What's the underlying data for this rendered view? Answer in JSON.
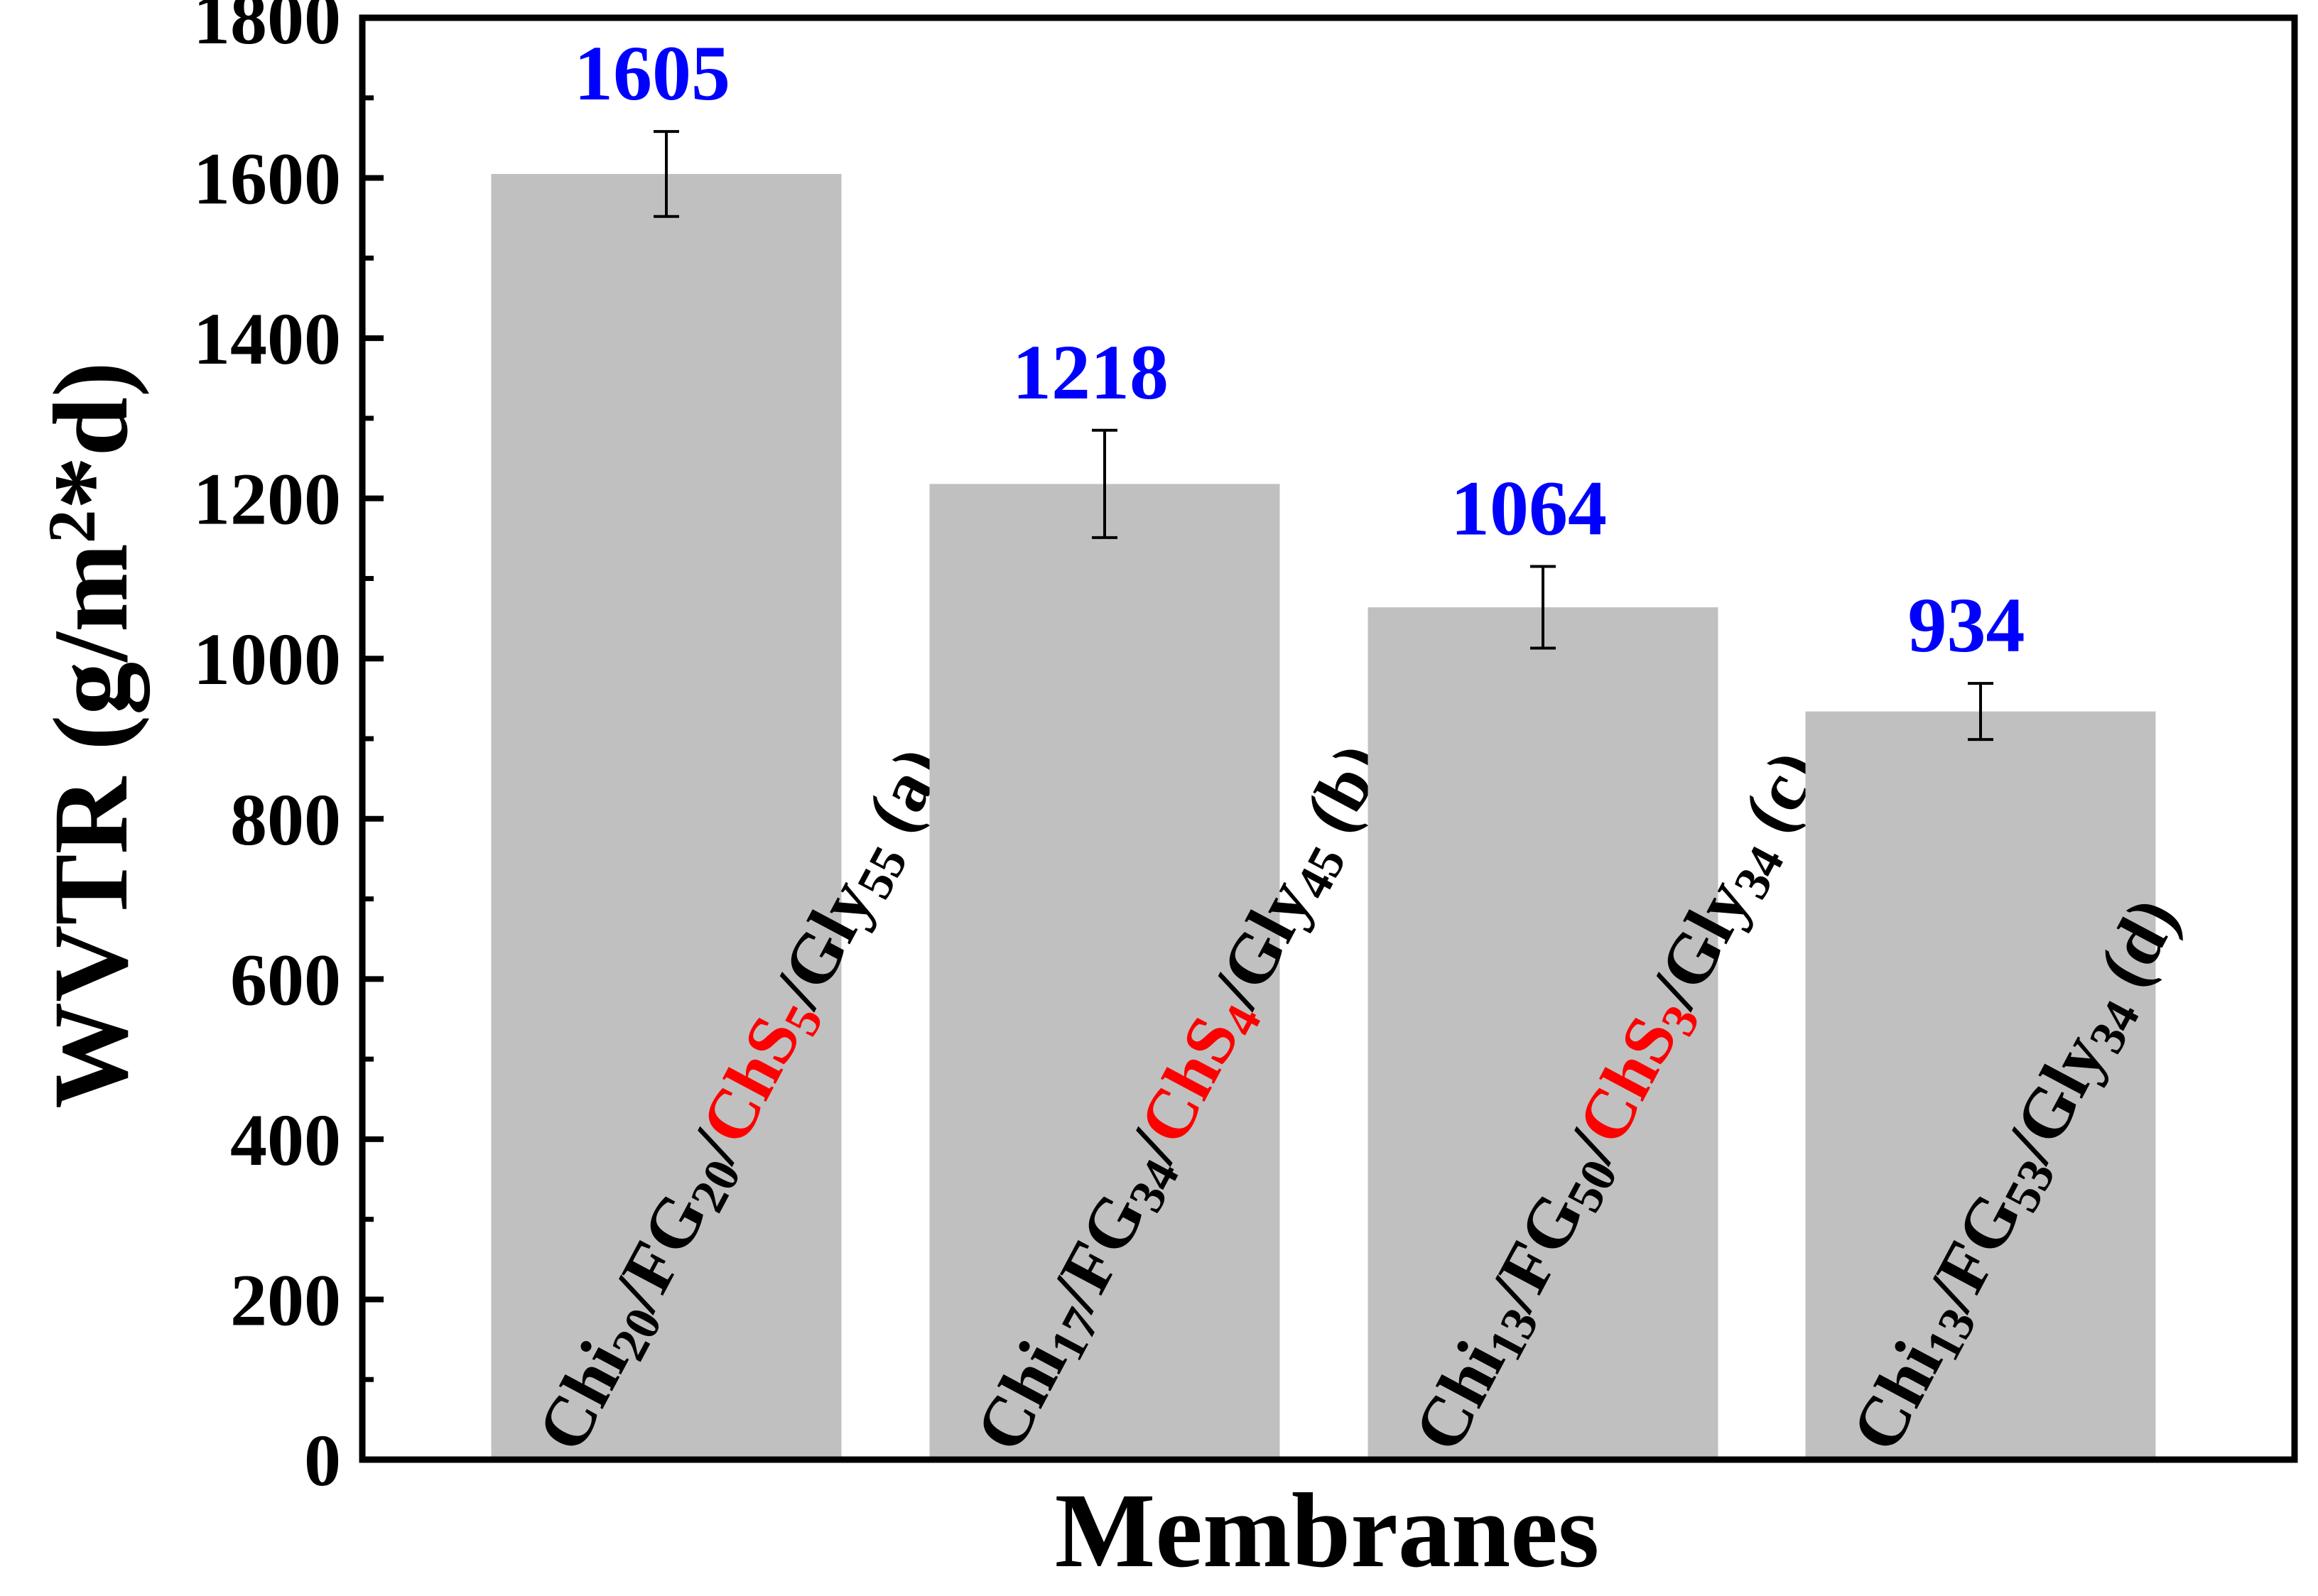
{
  "chart_data": {
    "type": "bar",
    "xlabel": "Membranes",
    "ylabel": {
      "base": "WVTR (g/m",
      "sup": "2",
      "tail": "*d)"
    },
    "ylim": [
      0,
      1800
    ],
    "yticks": [
      "0",
      "200",
      "400",
      "600",
      "800",
      "1000",
      "1200",
      "1400",
      "1600",
      "1800"
    ],
    "values": [
      1605,
      1218,
      1064,
      934
    ],
    "value_labels": [
      "1605",
      "1218",
      "1064",
      "934"
    ],
    "errors": [
      53,
      67,
      51,
      35
    ],
    "categories": [
      {
        "parts": [
          {
            "t": "Chi"
          },
          {
            "t": "20",
            "sub": true
          },
          {
            "t": "/FG"
          },
          {
            "t": "20",
            "sub": true
          },
          {
            "t": "/"
          },
          {
            "t": "ChS",
            "red": true
          },
          {
            "t": "5",
            "sub": true,
            "red": true
          },
          {
            "t": "/Gly"
          },
          {
            "t": "55",
            "sub": true
          },
          {
            "t": " (a)"
          }
        ]
      },
      {
        "parts": [
          {
            "t": "Chi"
          },
          {
            "t": "17",
            "sub": true
          },
          {
            "t": "/FG"
          },
          {
            "t": "34",
            "sub": true
          },
          {
            "t": "/"
          },
          {
            "t": "ChS",
            "red": true
          },
          {
            "t": "4",
            "sub": true,
            "red": true
          },
          {
            "t": "/Gly"
          },
          {
            "t": "45",
            "sub": true
          },
          {
            "t": " (b)"
          }
        ]
      },
      {
        "parts": [
          {
            "t": "Chi"
          },
          {
            "t": "13",
            "sub": true
          },
          {
            "t": "/FG"
          },
          {
            "t": "50",
            "sub": true
          },
          {
            "t": "/"
          },
          {
            "t": "ChS",
            "red": true
          },
          {
            "t": "3",
            "sub": true,
            "red": true
          },
          {
            "t": "/Gly"
          },
          {
            "t": "34",
            "sub": true
          },
          {
            "t": " (c)"
          }
        ]
      },
      {
        "parts": [
          {
            "t": "Chi"
          },
          {
            "t": "13",
            "sub": true
          },
          {
            "t": "/FG"
          },
          {
            "t": "53",
            "sub": true
          },
          {
            "t": "/Gly"
          },
          {
            "t": "34",
            "sub": true
          },
          {
            "t": " (d)"
          }
        ]
      }
    ],
    "grid": false,
    "colors": {
      "bar": "#c0c0c0",
      "value_label": "#0000ff",
      "highlight": "#ff0000",
      "axis": "#000000"
    }
  }
}
